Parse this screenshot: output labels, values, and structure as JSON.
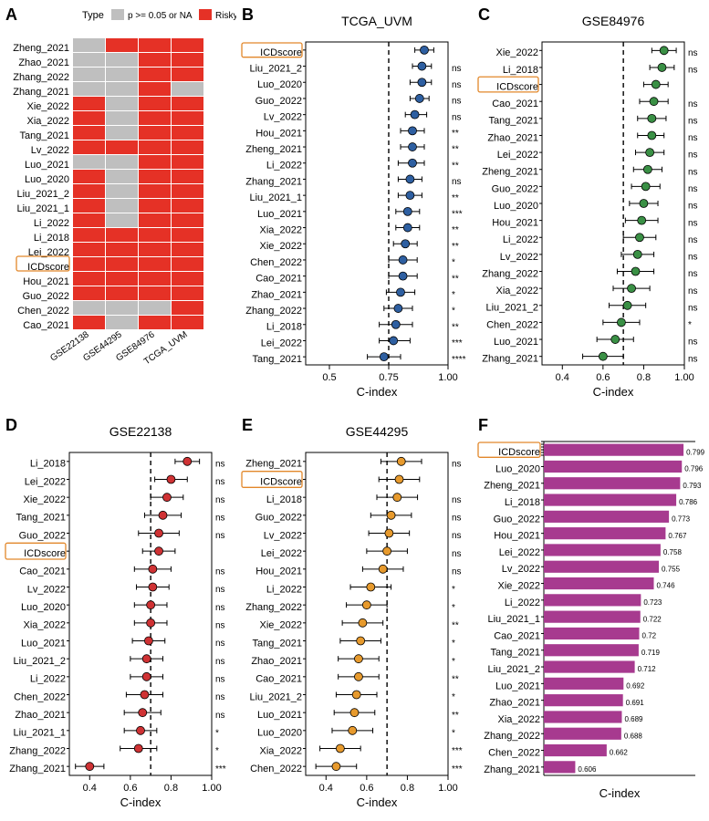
{
  "colors": {
    "risky": "#e53126",
    "ns_or_na": "#bfbfbf",
    "highlight_box": "#e2872a",
    "blue": "#2e5fa1",
    "green": "#3a9045",
    "red": "#cf3234",
    "orange": "#e79a2d",
    "purple": "#a73a8f",
    "black": "#000000",
    "dash": "#000000"
  },
  "panelA": {
    "title_legend": "Type",
    "legend_ns": "p >= 0.05 or NA",
    "legend_risky": "Risky",
    "cohorts": [
      "GSE22138",
      "GSE44295",
      "GSE84976",
      "TCGA_UVM"
    ],
    "rows": [
      {
        "label": "Zheng_2021",
        "cells": [
          "ns",
          "risky",
          "risky",
          "risky"
        ]
      },
      {
        "label": "Zhao_2021",
        "cells": [
          "ns",
          "ns",
          "risky",
          "risky"
        ]
      },
      {
        "label": "Zhang_2022",
        "cells": [
          "ns",
          "ns",
          "risky",
          "risky"
        ]
      },
      {
        "label": "Zhang_2021",
        "cells": [
          "ns",
          "ns",
          "risky",
          "ns"
        ]
      },
      {
        "label": "Xie_2022",
        "cells": [
          "risky",
          "ns",
          "risky",
          "risky"
        ]
      },
      {
        "label": "Xia_2022",
        "cells": [
          "risky",
          "ns",
          "risky",
          "risky"
        ]
      },
      {
        "label": "Tang_2021",
        "cells": [
          "risky",
          "ns",
          "risky",
          "risky"
        ]
      },
      {
        "label": "Lv_2022",
        "cells": [
          "risky",
          "risky",
          "risky",
          "risky"
        ]
      },
      {
        "label": "Luo_2021",
        "cells": [
          "ns",
          "ns",
          "risky",
          "risky"
        ]
      },
      {
        "label": "Luo_2020",
        "cells": [
          "risky",
          "ns",
          "risky",
          "risky"
        ]
      },
      {
        "label": "Liu_2021_2",
        "cells": [
          "risky",
          "ns",
          "risky",
          "risky"
        ]
      },
      {
        "label": "Liu_2021_1",
        "cells": [
          "risky",
          "ns",
          "risky",
          "risky"
        ]
      },
      {
        "label": "Li_2022",
        "cells": [
          "risky",
          "ns",
          "risky",
          "risky"
        ]
      },
      {
        "label": "Li_2018",
        "cells": [
          "risky",
          "risky",
          "risky",
          "risky"
        ]
      },
      {
        "label": "Lei_2022",
        "cells": [
          "risky",
          "risky",
          "risky",
          "risky"
        ]
      },
      {
        "label": "ICDscore",
        "cells": [
          "risky",
          "risky",
          "risky",
          "risky"
        ],
        "highlight": true
      },
      {
        "label": "Hou_2021",
        "cells": [
          "risky",
          "risky",
          "risky",
          "risky"
        ]
      },
      {
        "label": "Guo_2022",
        "cells": [
          "risky",
          "risky",
          "risky",
          "risky"
        ]
      },
      {
        "label": "Chen_2022",
        "cells": [
          "ns",
          "ns",
          "ns",
          "risky"
        ]
      },
      {
        "label": "Cao_2021",
        "cells": [
          "risky",
          "ns",
          "risky",
          "risky"
        ]
      }
    ]
  },
  "panelB": {
    "title": "TCGA_UVM",
    "color": "#2e5fa1",
    "xlabel": "C-index",
    "xlim": [
      0.4,
      1.0
    ],
    "ticks": [
      0.5,
      0.75,
      1.0
    ],
    "dash": 0.75,
    "rows": [
      {
        "label": "ICDscore",
        "v": 0.9,
        "lo": 0.86,
        "hi": 0.94,
        "sig": "",
        "highlight": true
      },
      {
        "label": "Liu_2021_2",
        "v": 0.89,
        "lo": 0.85,
        "hi": 0.93,
        "sig": "ns"
      },
      {
        "label": "Luo_2020",
        "v": 0.89,
        "lo": 0.84,
        "hi": 0.93,
        "sig": "ns"
      },
      {
        "label": "Guo_2022",
        "v": 0.88,
        "lo": 0.84,
        "hi": 0.92,
        "sig": "ns"
      },
      {
        "label": "Lv_2022",
        "v": 0.86,
        "lo": 0.82,
        "hi": 0.91,
        "sig": "ns"
      },
      {
        "label": "Hou_2021",
        "v": 0.85,
        "lo": 0.8,
        "hi": 0.9,
        "sig": "**"
      },
      {
        "label": "Zheng_2021",
        "v": 0.85,
        "lo": 0.8,
        "hi": 0.9,
        "sig": "**"
      },
      {
        "label": "Li_2022",
        "v": 0.85,
        "lo": 0.79,
        "hi": 0.9,
        "sig": "**"
      },
      {
        "label": "Zhang_2021",
        "v": 0.84,
        "lo": 0.79,
        "hi": 0.89,
        "sig": "ns"
      },
      {
        "label": "Liu_2021_1",
        "v": 0.84,
        "lo": 0.79,
        "hi": 0.89,
        "sig": "**"
      },
      {
        "label": "Luo_2021",
        "v": 0.83,
        "lo": 0.78,
        "hi": 0.88,
        "sig": "***"
      },
      {
        "label": "Xia_2022",
        "v": 0.83,
        "lo": 0.78,
        "hi": 0.88,
        "sig": "**"
      },
      {
        "label": "Xie_2022",
        "v": 0.82,
        "lo": 0.77,
        "hi": 0.87,
        "sig": "**"
      },
      {
        "label": "Chen_2022",
        "v": 0.81,
        "lo": 0.75,
        "hi": 0.87,
        "sig": "*"
      },
      {
        "label": "Cao_2021",
        "v": 0.81,
        "lo": 0.75,
        "hi": 0.87,
        "sig": "**"
      },
      {
        "label": "Zhao_2021",
        "v": 0.8,
        "lo": 0.74,
        "hi": 0.86,
        "sig": "*"
      },
      {
        "label": "Zhang_2022",
        "v": 0.79,
        "lo": 0.73,
        "hi": 0.85,
        "sig": "*"
      },
      {
        "label": "Li_2018",
        "v": 0.78,
        "lo": 0.71,
        "hi": 0.85,
        "sig": "**"
      },
      {
        "label": "Lei_2022",
        "v": 0.77,
        "lo": 0.71,
        "hi": 0.84,
        "sig": "***"
      },
      {
        "label": "Tang_2021",
        "v": 0.73,
        "lo": 0.66,
        "hi": 0.8,
        "sig": "****"
      }
    ]
  },
  "panelC": {
    "title": "GSE84976",
    "color": "#3a9045",
    "xlabel": "C-index",
    "xlim": [
      0.3,
      1.0
    ],
    "ticks": [
      0.4,
      0.6,
      0.8,
      1.0
    ],
    "dash": 0.7,
    "rows": [
      {
        "label": "Xie_2022",
        "v": 0.9,
        "lo": 0.84,
        "hi": 0.96,
        "sig": "ns"
      },
      {
        "label": "Li_2018",
        "v": 0.89,
        "lo": 0.83,
        "hi": 0.95,
        "sig": "ns"
      },
      {
        "label": "ICDscore",
        "v": 0.86,
        "lo": 0.8,
        "hi": 0.92,
        "sig": "",
        "highlight": true
      },
      {
        "label": "Cao_2021",
        "v": 0.85,
        "lo": 0.78,
        "hi": 0.92,
        "sig": "ns"
      },
      {
        "label": "Tang_2021",
        "v": 0.84,
        "lo": 0.77,
        "hi": 0.91,
        "sig": "ns"
      },
      {
        "label": "Zhao_2021",
        "v": 0.84,
        "lo": 0.77,
        "hi": 0.9,
        "sig": "ns"
      },
      {
        "label": "Lei_2022",
        "v": 0.83,
        "lo": 0.76,
        "hi": 0.9,
        "sig": "ns"
      },
      {
        "label": "Zheng_2021",
        "v": 0.82,
        "lo": 0.75,
        "hi": 0.89,
        "sig": "ns"
      },
      {
        "label": "Guo_2022",
        "v": 0.81,
        "lo": 0.74,
        "hi": 0.88,
        "sig": "ns"
      },
      {
        "label": "Luo_2020",
        "v": 0.8,
        "lo": 0.73,
        "hi": 0.87,
        "sig": "ns"
      },
      {
        "label": "Hou_2021",
        "v": 0.79,
        "lo": 0.71,
        "hi": 0.87,
        "sig": "ns"
      },
      {
        "label": "Li_2022",
        "v": 0.78,
        "lo": 0.7,
        "hi": 0.86,
        "sig": "ns"
      },
      {
        "label": "Lv_2022",
        "v": 0.77,
        "lo": 0.69,
        "hi": 0.85,
        "sig": "ns"
      },
      {
        "label": "Zhang_2022",
        "v": 0.76,
        "lo": 0.67,
        "hi": 0.85,
        "sig": "ns"
      },
      {
        "label": "Xia_2022",
        "v": 0.74,
        "lo": 0.65,
        "hi": 0.83,
        "sig": "ns"
      },
      {
        "label": "Liu_2021_2",
        "v": 0.72,
        "lo": 0.63,
        "hi": 0.81,
        "sig": "ns"
      },
      {
        "label": "Chen_2022",
        "v": 0.69,
        "lo": 0.6,
        "hi": 0.78,
        "sig": "*"
      },
      {
        "label": "Luo_2021",
        "v": 0.66,
        "lo": 0.57,
        "hi": 0.75,
        "sig": "ns"
      },
      {
        "label": "Zhang_2021",
        "v": 0.6,
        "lo": 0.5,
        "hi": 0.7,
        "sig": "ns"
      }
    ]
  },
  "panelD": {
    "title": "GSE22138",
    "color": "#cf3234",
    "xlabel": "C-index",
    "xlim": [
      0.3,
      1.0
    ],
    "ticks": [
      0.4,
      0.6,
      0.8,
      1.0
    ],
    "dash": 0.7,
    "rows": [
      {
        "label": "Li_2018",
        "v": 0.88,
        "lo": 0.82,
        "hi": 0.94,
        "sig": "ns"
      },
      {
        "label": "Lei_2022",
        "v": 0.8,
        "lo": 0.72,
        "hi": 0.88,
        "sig": "ns"
      },
      {
        "label": "Xie_2022",
        "v": 0.78,
        "lo": 0.7,
        "hi": 0.86,
        "sig": "ns"
      },
      {
        "label": "Tang_2021",
        "v": 0.76,
        "lo": 0.67,
        "hi": 0.85,
        "sig": "ns"
      },
      {
        "label": "Guo_2022",
        "v": 0.74,
        "lo": 0.64,
        "hi": 0.84,
        "sig": "ns"
      },
      {
        "label": "ICDscore",
        "v": 0.74,
        "lo": 0.66,
        "hi": 0.82,
        "sig": "",
        "highlight": true
      },
      {
        "label": "Cao_2021",
        "v": 0.71,
        "lo": 0.62,
        "hi": 0.8,
        "sig": "ns"
      },
      {
        "label": "Lv_2022",
        "v": 0.71,
        "lo": 0.63,
        "hi": 0.79,
        "sig": "ns"
      },
      {
        "label": "Luo_2020",
        "v": 0.7,
        "lo": 0.62,
        "hi": 0.78,
        "sig": "ns"
      },
      {
        "label": "Xia_2022",
        "v": 0.7,
        "lo": 0.62,
        "hi": 0.78,
        "sig": "ns"
      },
      {
        "label": "Luo_2021",
        "v": 0.69,
        "lo": 0.61,
        "hi": 0.77,
        "sig": "ns"
      },
      {
        "label": "Liu_2021_2",
        "v": 0.68,
        "lo": 0.6,
        "hi": 0.76,
        "sig": "ns"
      },
      {
        "label": "Li_2022",
        "v": 0.68,
        "lo": 0.6,
        "hi": 0.76,
        "sig": "ns"
      },
      {
        "label": "Chen_2022",
        "v": 0.67,
        "lo": 0.58,
        "hi": 0.76,
        "sig": "ns"
      },
      {
        "label": "Zhao_2021",
        "v": 0.66,
        "lo": 0.57,
        "hi": 0.75,
        "sig": "ns"
      },
      {
        "label": "Liu_2021_1",
        "v": 0.65,
        "lo": 0.57,
        "hi": 0.73,
        "sig": "*"
      },
      {
        "label": "Zhang_2022",
        "v": 0.64,
        "lo": 0.55,
        "hi": 0.73,
        "sig": "*"
      },
      {
        "label": "Zhang_2021",
        "v": 0.4,
        "lo": 0.33,
        "hi": 0.47,
        "sig": "***"
      }
    ]
  },
  "panelE": {
    "title": "GSE44295",
    "color": "#e79a2d",
    "xlabel": "C-index",
    "xlim": [
      0.3,
      1.0
    ],
    "ticks": [
      0.4,
      0.6,
      0.8,
      1.0
    ],
    "dash": 0.7,
    "rows": [
      {
        "label": "Zheng_2021",
        "v": 0.77,
        "lo": 0.67,
        "hi": 0.87,
        "sig": "ns"
      },
      {
        "label": "ICDscore",
        "v": 0.76,
        "lo": 0.66,
        "hi": 0.86,
        "sig": "",
        "highlight": true
      },
      {
        "label": "Li_2018",
        "v": 0.75,
        "lo": 0.65,
        "hi": 0.85,
        "sig": "ns"
      },
      {
        "label": "Guo_2022",
        "v": 0.72,
        "lo": 0.62,
        "hi": 0.82,
        "sig": "ns"
      },
      {
        "label": "Lv_2022",
        "v": 0.71,
        "lo": 0.61,
        "hi": 0.81,
        "sig": "ns"
      },
      {
        "label": "Lei_2022",
        "v": 0.7,
        "lo": 0.6,
        "hi": 0.8,
        "sig": "ns"
      },
      {
        "label": "Hou_2021",
        "v": 0.68,
        "lo": 0.58,
        "hi": 0.78,
        "sig": "ns"
      },
      {
        "label": "Li_2022",
        "v": 0.62,
        "lo": 0.52,
        "hi": 0.72,
        "sig": "*"
      },
      {
        "label": "Zhang_2022",
        "v": 0.6,
        "lo": 0.5,
        "hi": 0.7,
        "sig": "*"
      },
      {
        "label": "Xie_2022",
        "v": 0.58,
        "lo": 0.48,
        "hi": 0.68,
        "sig": "**"
      },
      {
        "label": "Tang_2021",
        "v": 0.57,
        "lo": 0.47,
        "hi": 0.67,
        "sig": "*"
      },
      {
        "label": "Zhao_2021",
        "v": 0.56,
        "lo": 0.46,
        "hi": 0.66,
        "sig": "*"
      },
      {
        "label": "Cao_2021",
        "v": 0.56,
        "lo": 0.46,
        "hi": 0.66,
        "sig": "**"
      },
      {
        "label": "Liu_2021_2",
        "v": 0.55,
        "lo": 0.45,
        "hi": 0.65,
        "sig": "*"
      },
      {
        "label": "Luo_2021",
        "v": 0.54,
        "lo": 0.44,
        "hi": 0.64,
        "sig": "**"
      },
      {
        "label": "Luo_2020",
        "v": 0.53,
        "lo": 0.43,
        "hi": 0.63,
        "sig": "*"
      },
      {
        "label": "Xia_2022",
        "v": 0.47,
        "lo": 0.37,
        "hi": 0.57,
        "sig": "***"
      },
      {
        "label": "Chen_2022",
        "v": 0.45,
        "lo": 0.35,
        "hi": 0.55,
        "sig": "***"
      }
    ]
  },
  "panelF": {
    "color": "#a73a8f",
    "xlabel": "C-index",
    "rows": [
      {
        "label": "ICDscore",
        "v": 0.799,
        "highlight": true
      },
      {
        "label": "Luo_2020",
        "v": 0.796
      },
      {
        "label": "Zheng_2021",
        "v": 0.793
      },
      {
        "label": "Li_2018",
        "v": 0.786
      },
      {
        "label": "Guo_2022",
        "v": 0.773
      },
      {
        "label": "Hou_2021",
        "v": 0.767
      },
      {
        "label": "Lei_2022",
        "v": 0.758
      },
      {
        "label": "Lv_2022",
        "v": 0.755
      },
      {
        "label": "Xie_2022",
        "v": 0.746
      },
      {
        "label": "Li_2022",
        "v": 0.723
      },
      {
        "label": "Liu_2021_1",
        "v": 0.722
      },
      {
        "label": "Cao_2021",
        "v": 0.72
      },
      {
        "label": "Tang_2021",
        "v": 0.719
      },
      {
        "label": "Liu_2021_2",
        "v": 0.712
      },
      {
        "label": "Luo_2021",
        "v": 0.692
      },
      {
        "label": "Zhao_2021",
        "v": 0.691
      },
      {
        "label": "Xia_2022",
        "v": 0.689
      },
      {
        "label": "Zhang_2022",
        "v": 0.688
      },
      {
        "label": "Chen_2022",
        "v": 0.662
      },
      {
        "label": "Zhang_2021",
        "v": 0.606
      }
    ],
    "xlim": [
      0.55,
      0.82
    ]
  }
}
